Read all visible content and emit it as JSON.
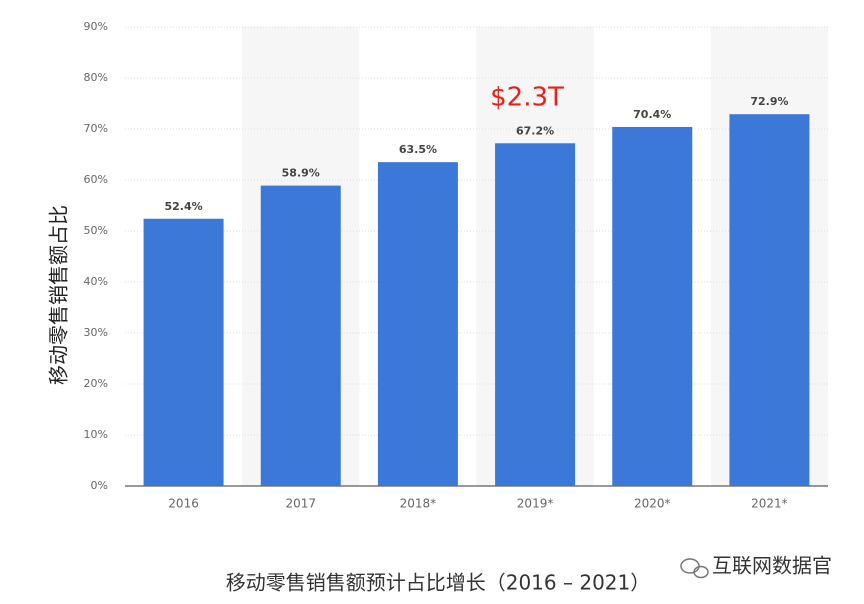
{
  "chart_data": {
    "type": "bar",
    "title": "移动零售销售额预计占比增长（2016 – 2021）",
    "y_label": "移动零售销售额占比",
    "annotation": "$2.3T",
    "watermark": "互联网数据官",
    "categories": [
      "2016",
      "2017",
      "2018*",
      "2019*",
      "2020*",
      "2021*"
    ],
    "values": [
      52.4,
      58.9,
      63.5,
      67.2,
      70.4,
      72.9
    ],
    "value_labels": [
      "52.4%",
      "58.9%",
      "63.5%",
      "67.2%",
      "70.4%",
      "72.9%"
    ],
    "color": "#3c78d8",
    "ylim": [
      0,
      90
    ],
    "yticks": [
      {
        "value": 0,
        "label": "0%"
      },
      {
        "value": 10,
        "label": "10%"
      },
      {
        "value": 20,
        "label": "20%"
      },
      {
        "value": 30,
        "label": "30%"
      },
      {
        "value": 40,
        "label": "40%"
      },
      {
        "value": 50,
        "label": "50%"
      },
      {
        "value": 60,
        "label": "60%"
      },
      {
        "value": 70,
        "label": "70%"
      },
      {
        "value": 80,
        "label": "80%"
      },
      {
        "value": 90,
        "label": "90%"
      }
    ],
    "grid": true
  }
}
